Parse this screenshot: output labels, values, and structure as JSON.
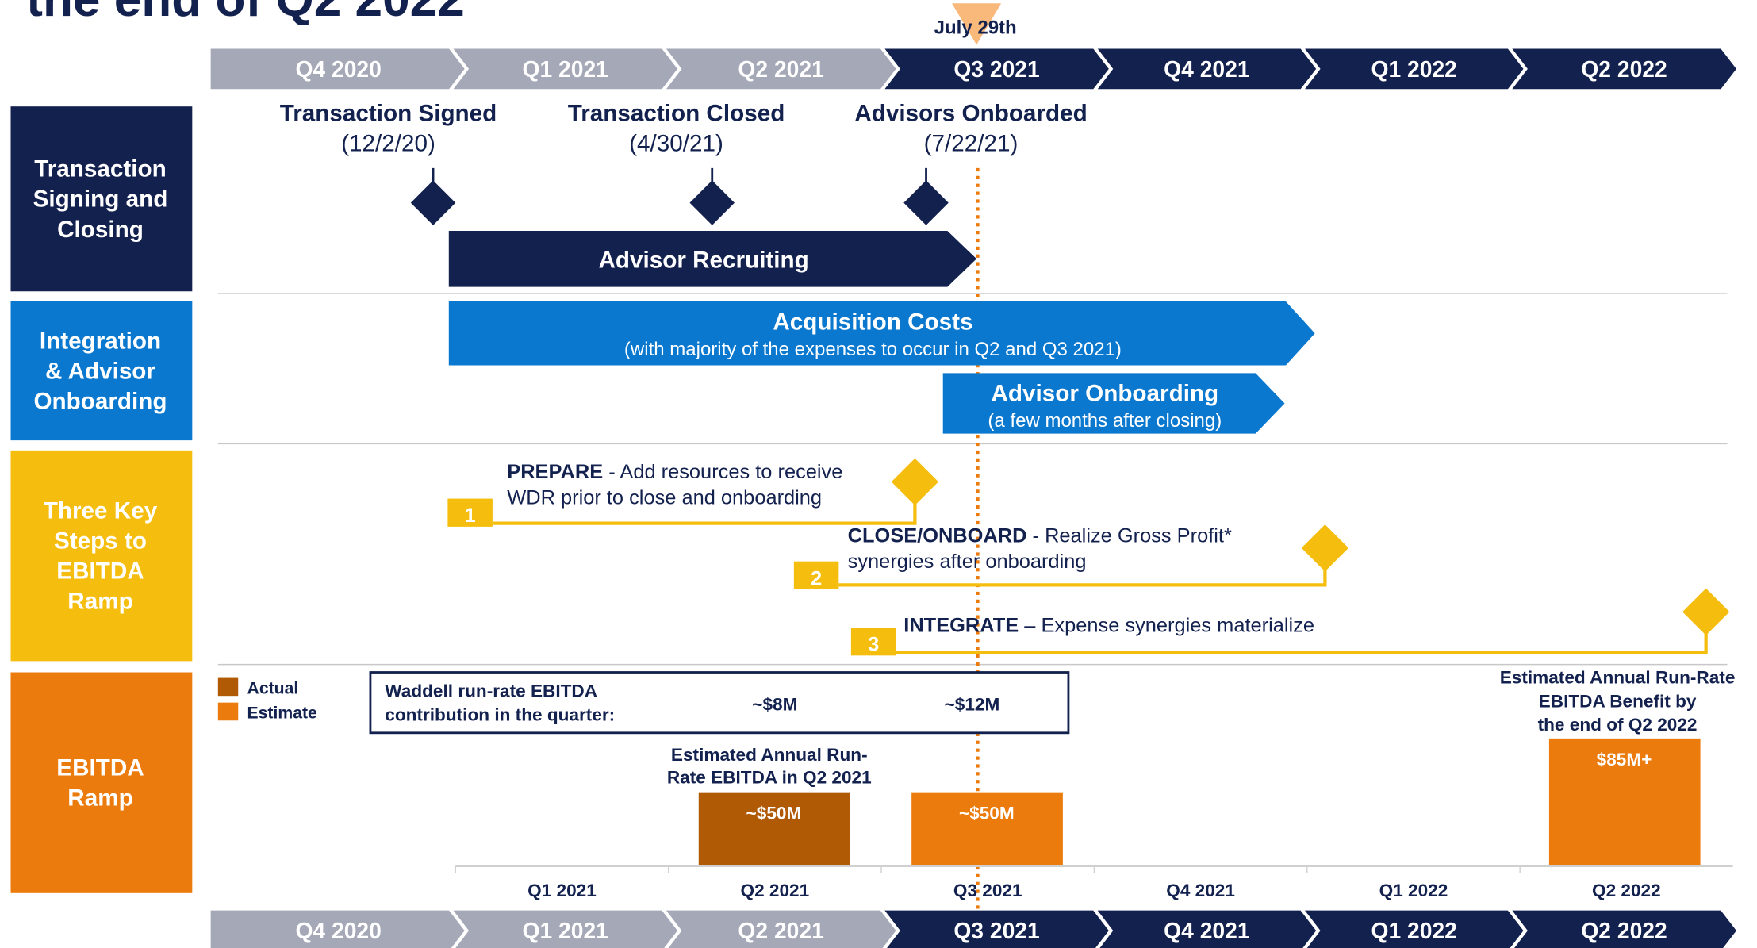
{
  "title": "the end of Q2 2022",
  "marker": "July 29th",
  "quarters": [
    {
      "label": "Q4 2020",
      "color": "#a5a8b6"
    },
    {
      "label": "Q1 2021",
      "color": "#a5a8b6"
    },
    {
      "label": "Q2 2021",
      "color": "#a5a8b6"
    },
    {
      "label": "Q3 2021",
      "color": "#13214f"
    },
    {
      "label": "Q4 2021",
      "color": "#13214f"
    },
    {
      "label": "Q1 2022",
      "color": "#13214f"
    },
    {
      "label": "Q2 2022",
      "color": "#13214f"
    }
  ],
  "rows": [
    {
      "lines": [
        "Transaction",
        "Signing and",
        "Closing"
      ],
      "color": "#13214f"
    },
    {
      "lines": [
        "Integration",
        "& Advisor",
        "Onboarding"
      ],
      "color": "#0a78cf"
    },
    {
      "lines": [
        "Three Key",
        "Steps to",
        "EBITDA",
        "Ramp"
      ],
      "color": "#f5be0e"
    },
    {
      "lines": [
        "EBITDA",
        "Ramp"
      ],
      "color": "#ec7b0d"
    }
  ],
  "milestones": [
    {
      "label": "Transaction Signed",
      "date": "(12/2/20)"
    },
    {
      "label": "Transaction Closed",
      "date": "(4/30/21)"
    },
    {
      "label": "Advisors Onboarded",
      "date": "(7/22/21)"
    }
  ],
  "workstreams": [
    {
      "title": "Advisor Recruiting"
    },
    {
      "title": "Acquisition Costs",
      "note": "(with majority of the expenses to occur in Q2 and Q3 2021)"
    },
    {
      "title": "Advisor Onboarding",
      "note": "(a few months after closing)"
    }
  ],
  "steps": [
    {
      "number": 1,
      "name": "PREPARE",
      "lines": [
        "- Add resources to receive",
        "WDR prior to close and onboarding"
      ]
    },
    {
      "number": 2,
      "name": "CLOSE/ONBOARD",
      "lines": [
        "- Realize Gross Profit*",
        "synergies after onboarding"
      ]
    },
    {
      "number": 3,
      "name": "INTEGRATE",
      "lines": [
        "– Expense synergies materialize"
      ]
    }
  ],
  "ebitda": {
    "legend": [
      {
        "label": "Actual",
        "color": "#b05a06"
      },
      {
        "label": "Estimate",
        "color": "#ec7b0d"
      }
    ],
    "box_label": [
      "Waddell run-rate EBITDA",
      "contribution in the quarter:"
    ],
    "box_values": [
      "~$8M",
      "~$12M"
    ],
    "annotation_q2": [
      "Estimated Annual Run-",
      "Rate EBITDA in Q2 2021"
    ],
    "annotation_end": [
      "Estimated Annual Run-Rate",
      "EBITDA Benefit by",
      "the end of Q2 2022"
    ],
    "bars": [
      {
        "label": "~$50M",
        "color": "#b05a06"
      },
      {
        "label": "~$50M",
        "color": "#ec7b0d"
      },
      {
        "label": "$85M+",
        "color": "#ec7b0d"
      }
    ],
    "axis": [
      "Q1 2021",
      "Q2 2021",
      "Q3 2021",
      "Q4 2021",
      "Q1 2022",
      "Q2 2022"
    ]
  }
}
